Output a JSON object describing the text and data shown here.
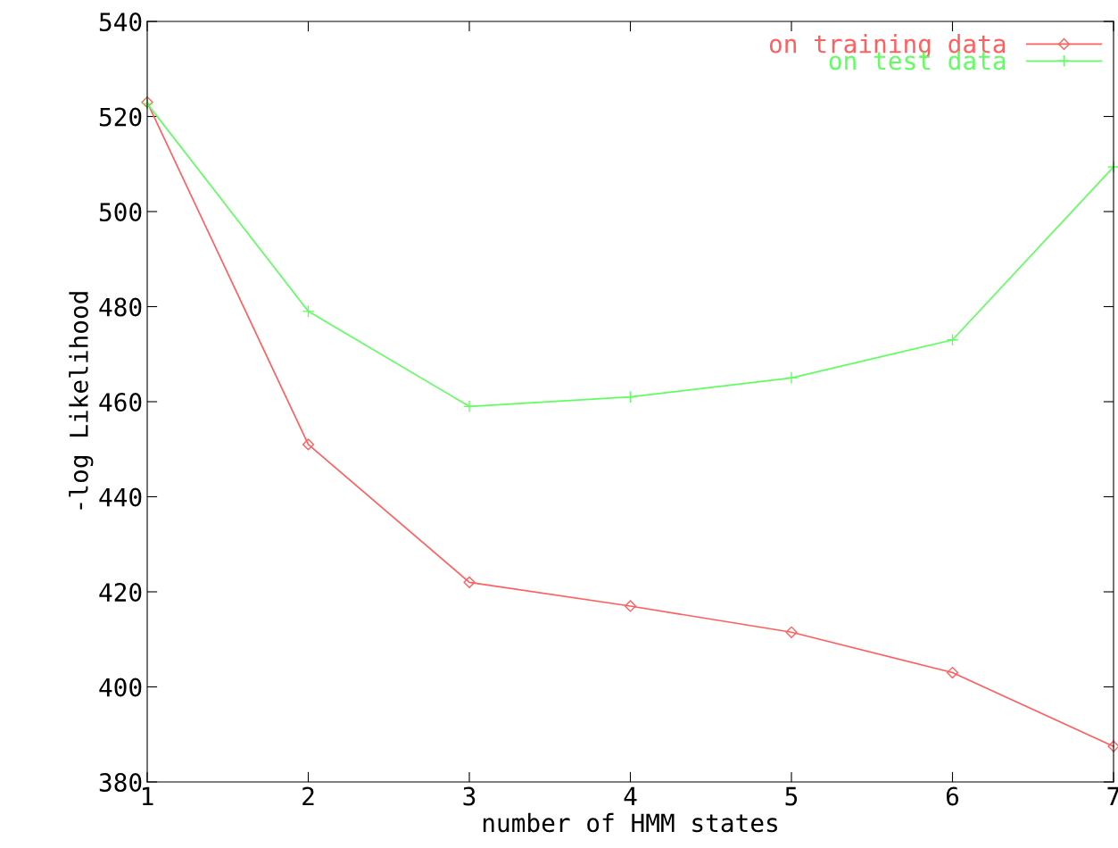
{
  "chart_data": {
    "type": "line",
    "xlabel": "number of HMM states",
    "ylabel": "-log Likelihood",
    "x": [
      1,
      2,
      3,
      4,
      5,
      6,
      7
    ],
    "series": [
      {
        "name": "on training data",
        "color": "#ff5f5f",
        "marker": "diamond",
        "values": [
          523,
          451,
          422,
          417,
          411.5,
          403,
          387.5
        ]
      },
      {
        "name": "on test data",
        "color": "#5fff5f",
        "marker": "cross",
        "values": [
          522.7,
          479,
          459,
          461,
          465,
          473,
          509.4
        ]
      }
    ],
    "xlim": [
      1,
      7
    ],
    "xticks": [
      1,
      2,
      3,
      4,
      5,
      6,
      7
    ],
    "ylim": [
      380,
      540
    ],
    "yticks": [
      380,
      400,
      420,
      440,
      460,
      480,
      500,
      520,
      540
    ],
    "grid": false,
    "legend": "top right"
  }
}
